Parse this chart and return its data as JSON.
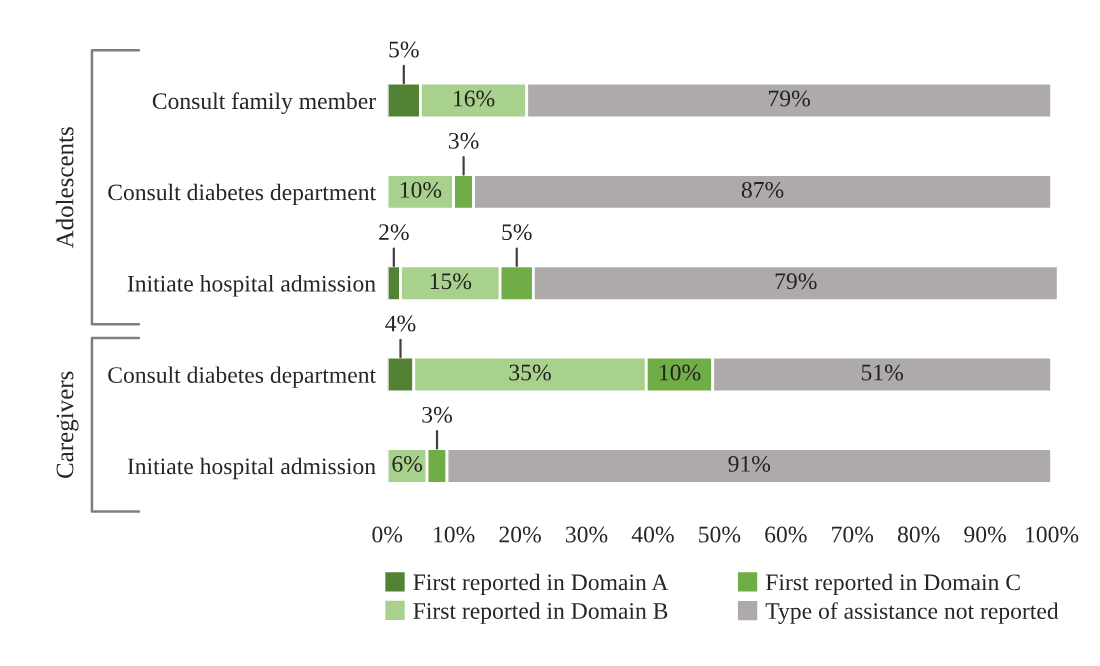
{
  "chart_data": {
    "type": "bar",
    "orientation": "horizontal",
    "stacked": true,
    "categories": [
      "Consult family member",
      "Consult diabetes department",
      "Initiate hospital admission",
      "Consult diabetes department",
      "Initiate hospital admission"
    ],
    "series": [
      {
        "name": "First reported in Domain A",
        "color": "#548235",
        "values": [
          5,
          0,
          2,
          4,
          0
        ],
        "value_labels": [
          "5%",
          null,
          "2%",
          "4%",
          null
        ]
      },
      {
        "name": "First reported in Domain B",
        "color": "#a9d18e",
        "values": [
          16,
          10,
          15,
          35,
          6
        ],
        "value_labels": [
          "16%",
          "10%",
          "15%",
          "35%",
          "6%"
        ]
      },
      {
        "name": "First reported in Domain C",
        "color": "#70ad47",
        "values": [
          0,
          3,
          5,
          10,
          3
        ],
        "value_labels": [
          null,
          "3%",
          "5%",
          "10%",
          "3%"
        ]
      },
      {
        "name": "Type of assistance not reported",
        "color": "#aeaaaa",
        "values": [
          79,
          87,
          79,
          51,
          91
        ],
        "value_labels": [
          "79%",
          "87%",
          "79%",
          "51%",
          "91%"
        ]
      }
    ],
    "xlim": [
      0,
      101
    ],
    "xticks": [
      {
        "value": 0,
        "label": "0%"
      },
      {
        "value": 10,
        "label": "10%"
      },
      {
        "value": 20,
        "label": "20%"
      },
      {
        "value": 30,
        "label": "30%"
      },
      {
        "value": 40,
        "label": "40%"
      },
      {
        "value": 50,
        "label": "50%"
      },
      {
        "value": 60,
        "label": "60%"
      },
      {
        "value": 70,
        "label": "70%"
      },
      {
        "value": 80,
        "label": "80%"
      },
      {
        "value": 90,
        "label": "90%"
      },
      {
        "value": 100,
        "label": "100%"
      }
    ],
    "annotations": [
      "Adolescents",
      "Caregivers"
    ],
    "grid": false,
    "legend": "bottom"
  }
}
